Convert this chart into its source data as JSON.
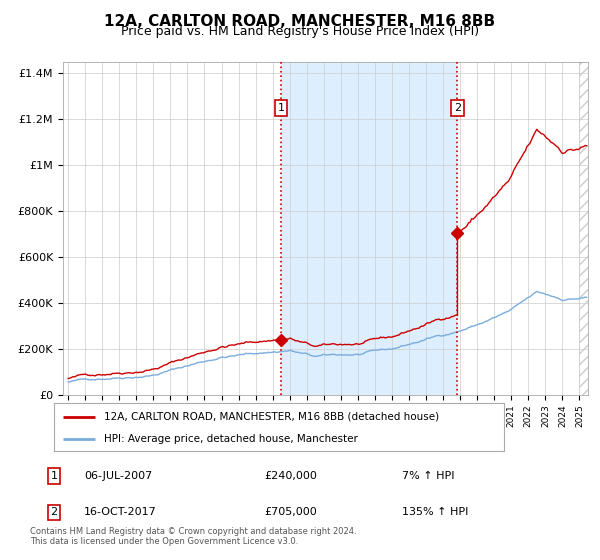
{
  "title": "12A, CARLTON ROAD, MANCHESTER, M16 8BB",
  "subtitle": "Price paid vs. HM Land Registry's House Price Index (HPI)",
  "title_fontsize": 11,
  "subtitle_fontsize": 9,
  "hpi_color": "#7aaddc",
  "price_color": "#cc0000",
  "vline_color": "#cc0000",
  "vline_style": ":",
  "shade_color": "#ddeeff",
  "hatch_color": "#cccccc",
  "ylim": [
    0,
    1450000
  ],
  "yticks": [
    0,
    200000,
    400000,
    600000,
    800000,
    1000000,
    1200000,
    1400000
  ],
  "ytick_labels": [
    "£0",
    "£200K",
    "£400K",
    "£600K",
    "£800K",
    "£1M",
    "£1.2M",
    "£1.4M"
  ],
  "xlim_start": 1994.7,
  "xlim_end": 2025.5,
  "t1_year": 2007.5,
  "t1_value": 240000,
  "t2_year": 2017.83,
  "t2_value": 705000,
  "legend_label_red": "12A, CARLTON ROAD, MANCHESTER, M16 8BB (detached house)",
  "legend_label_blue": "HPI: Average price, detached house, Manchester",
  "transaction1_date": "06-JUL-2007",
  "transaction1_amount": "£240,000",
  "transaction1_pct": "7% ↑ HPI",
  "transaction2_date": "16-OCT-2017",
  "transaction2_amount": "£705,000",
  "transaction2_pct": "135% ↑ HPI",
  "footer": "Contains HM Land Registry data © Crown copyright and database right 2024.\nThis data is licensed under the Open Government Licence v3.0.",
  "background_color": "#ffffff"
}
